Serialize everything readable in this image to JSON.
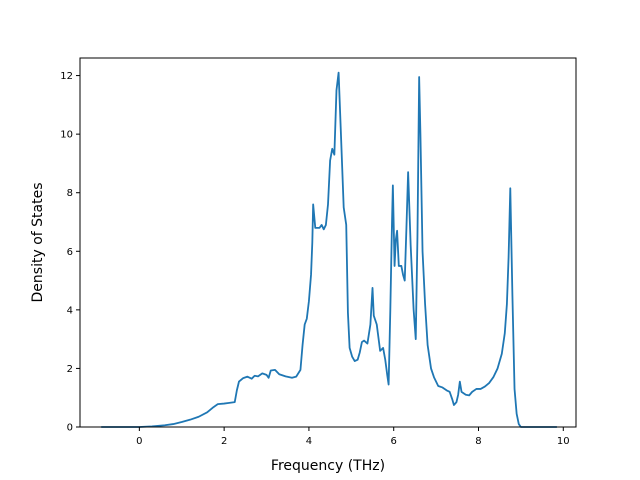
{
  "chart_data": {
    "type": "line",
    "title": "",
    "xlabel": "Frequency (THz)",
    "ylabel": "Density of States",
    "xlim": [
      -1.4,
      10.3
    ],
    "ylim": [
      0,
      12.6
    ],
    "xticks": [
      0,
      2,
      4,
      6,
      8,
      10
    ],
    "yticks": [
      0,
      2,
      4,
      6,
      8,
      10,
      12
    ],
    "grid": false,
    "legend": "none",
    "colors": {
      "line": "#1f77b4",
      "axes": "#000000",
      "background": "#ffffff"
    },
    "series": [
      {
        "points": [
          [
            -0.9,
            0.0
          ],
          [
            0.0,
            0.0
          ],
          [
            0.3,
            0.02
          ],
          [
            0.6,
            0.06
          ],
          [
            0.8,
            0.1
          ],
          [
            1.0,
            0.17
          ],
          [
            1.2,
            0.25
          ],
          [
            1.4,
            0.35
          ],
          [
            1.6,
            0.5
          ],
          [
            1.75,
            0.68
          ],
          [
            1.85,
            0.78
          ],
          [
            2.0,
            0.8
          ],
          [
            2.1,
            0.82
          ],
          [
            2.25,
            0.85
          ],
          [
            2.3,
            1.25
          ],
          [
            2.35,
            1.55
          ],
          [
            2.45,
            1.67
          ],
          [
            2.55,
            1.72
          ],
          [
            2.65,
            1.65
          ],
          [
            2.72,
            1.75
          ],
          [
            2.8,
            1.73
          ],
          [
            2.9,
            1.83
          ],
          [
            3.0,
            1.78
          ],
          [
            3.05,
            1.68
          ],
          [
            3.1,
            1.93
          ],
          [
            3.2,
            1.95
          ],
          [
            3.3,
            1.8
          ],
          [
            3.45,
            1.73
          ],
          [
            3.6,
            1.68
          ],
          [
            3.7,
            1.72
          ],
          [
            3.8,
            1.95
          ],
          [
            3.85,
            2.8
          ],
          [
            3.9,
            3.5
          ],
          [
            3.95,
            3.7
          ],
          [
            4.0,
            4.3
          ],
          [
            4.05,
            5.2
          ],
          [
            4.08,
            6.3
          ],
          [
            4.1,
            7.6
          ],
          [
            4.15,
            6.8
          ],
          [
            4.25,
            6.8
          ],
          [
            4.3,
            6.9
          ],
          [
            4.35,
            6.75
          ],
          [
            4.4,
            6.9
          ],
          [
            4.45,
            7.6
          ],
          [
            4.5,
            9.1
          ],
          [
            4.55,
            9.5
          ],
          [
            4.6,
            9.3
          ],
          [
            4.65,
            11.5
          ],
          [
            4.7,
            12.1
          ],
          [
            4.75,
            10.2
          ],
          [
            4.82,
            7.5
          ],
          [
            4.88,
            6.9
          ],
          [
            4.92,
            3.9
          ],
          [
            4.96,
            2.7
          ],
          [
            5.02,
            2.4
          ],
          [
            5.08,
            2.25
          ],
          [
            5.15,
            2.3
          ],
          [
            5.2,
            2.55
          ],
          [
            5.25,
            2.9
          ],
          [
            5.3,
            2.95
          ],
          [
            5.38,
            2.85
          ],
          [
            5.45,
            3.5
          ],
          [
            5.5,
            4.75
          ],
          [
            5.53,
            3.8
          ],
          [
            5.6,
            3.5
          ],
          [
            5.68,
            2.6
          ],
          [
            5.75,
            2.7
          ],
          [
            5.8,
            2.3
          ],
          [
            5.85,
            1.75
          ],
          [
            5.88,
            1.45
          ],
          [
            5.92,
            4.0
          ],
          [
            5.96,
            7.0
          ],
          [
            5.98,
            8.25
          ],
          [
            6.02,
            5.5
          ],
          [
            6.05,
            6.4
          ],
          [
            6.08,
            6.7
          ],
          [
            6.12,
            5.5
          ],
          [
            6.18,
            5.5
          ],
          [
            6.22,
            5.2
          ],
          [
            6.26,
            5.0
          ],
          [
            6.3,
            6.8
          ],
          [
            6.34,
            8.7
          ],
          [
            6.4,
            6.2
          ],
          [
            6.47,
            4.0
          ],
          [
            6.52,
            3.0
          ],
          [
            6.56,
            6.5
          ],
          [
            6.6,
            11.95
          ],
          [
            6.63,
            10.0
          ],
          [
            6.68,
            6.0
          ],
          [
            6.74,
            4.2
          ],
          [
            6.8,
            2.8
          ],
          [
            6.88,
            2.0
          ],
          [
            6.95,
            1.7
          ],
          [
            7.0,
            1.55
          ],
          [
            7.05,
            1.4
          ],
          [
            7.15,
            1.35
          ],
          [
            7.25,
            1.25
          ],
          [
            7.32,
            1.2
          ],
          [
            7.38,
            0.95
          ],
          [
            7.42,
            0.75
          ],
          [
            7.48,
            0.85
          ],
          [
            7.52,
            1.1
          ],
          [
            7.56,
            1.55
          ],
          [
            7.6,
            1.2
          ],
          [
            7.7,
            1.1
          ],
          [
            7.78,
            1.08
          ],
          [
            7.85,
            1.2
          ],
          [
            7.95,
            1.3
          ],
          [
            8.05,
            1.3
          ],
          [
            8.15,
            1.38
          ],
          [
            8.25,
            1.5
          ],
          [
            8.35,
            1.7
          ],
          [
            8.45,
            2.0
          ],
          [
            8.55,
            2.5
          ],
          [
            8.62,
            3.2
          ],
          [
            8.67,
            4.2
          ],
          [
            8.71,
            5.8
          ],
          [
            8.75,
            8.15
          ],
          [
            8.8,
            4.5
          ],
          [
            8.85,
            1.3
          ],
          [
            8.9,
            0.45
          ],
          [
            8.95,
            0.1
          ],
          [
            9.0,
            0.0
          ],
          [
            9.85,
            0.0
          ]
        ]
      }
    ]
  }
}
